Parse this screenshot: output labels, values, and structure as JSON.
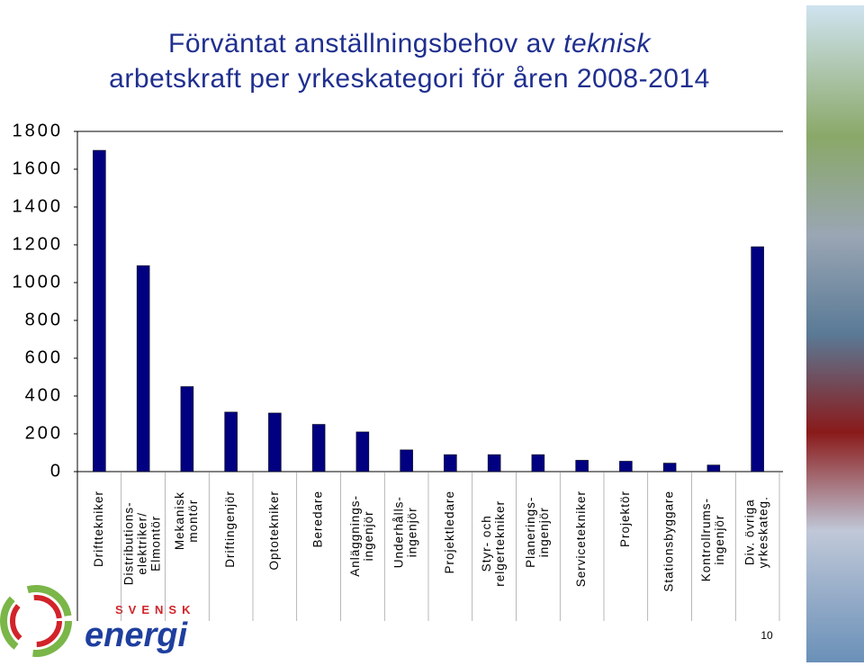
{
  "chart_data": {
    "type": "bar",
    "title": {
      "line1": "Förväntat anställningsbehov av",
      "emphasis": "teknisk",
      "line2": "arbetskraft per yrkeskategori för åren 2008-2014"
    },
    "categories": [
      [
        "Drifttekniker"
      ],
      [
        "Distributions-",
        "elektriker/",
        "Elmontör"
      ],
      [
        "Mekanisk",
        "montör"
      ],
      [
        "Driftingenjör"
      ],
      [
        "Optotekniker"
      ],
      [
        "Beredare"
      ],
      [
        "Anläggnings-",
        "ingenjör"
      ],
      [
        "Underhålls-",
        "ingenjör"
      ],
      [
        "Projektledare"
      ],
      [
        "Styr- och",
        "relgertekniker"
      ],
      [
        "Planerings-",
        "ingenjör"
      ],
      [
        "Servicetekniker"
      ],
      [
        "Projektör"
      ],
      [
        "Stationsbyggare"
      ],
      [
        "Kontrollrums-",
        "ingenjör"
      ],
      [
        "Div. övriga",
        "yrkeskateg."
      ]
    ],
    "values": [
      1700,
      1090,
      450,
      315,
      310,
      250,
      210,
      115,
      90,
      90,
      90,
      60,
      55,
      45,
      35,
      1190
    ],
    "color": "#000080",
    "ylim": [
      0,
      1800
    ],
    "yticks": [
      0,
      200,
      400,
      600,
      800,
      1000,
      1200,
      1400,
      1600,
      1800
    ],
    "grid": false
  },
  "logo": {
    "top": "SVENSK",
    "bottom": "energi"
  },
  "page_number": "10"
}
